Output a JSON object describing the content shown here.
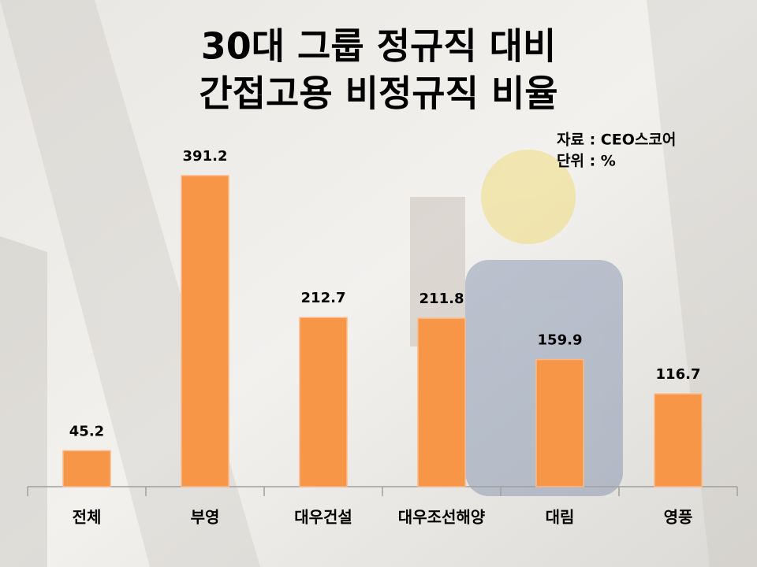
{
  "chart_data": {
    "type": "bar",
    "title": [
      "30대 그룹 정규직 대비",
      "간접고용 비정규직 비율"
    ],
    "annotations": [
      "자료 : CEO스코어",
      "단위 : %"
    ],
    "categories": [
      "전체",
      "부영",
      "대우건설",
      "대우조선해양",
      "대림",
      "영풍"
    ],
    "values": [
      45.2,
      391.2,
      212.7,
      211.8,
      159.9,
      116.7
    ],
    "color": "#f79646"
  }
}
